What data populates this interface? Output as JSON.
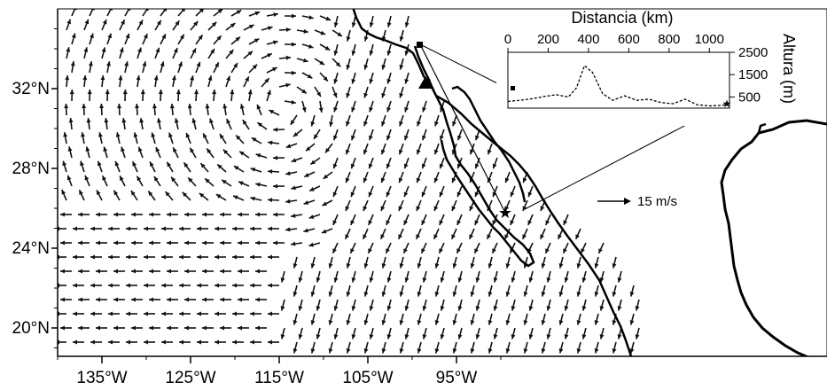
{
  "map": {
    "x_ticks": [
      {
        "lon": -135,
        "label": "135°W"
      },
      {
        "lon": -125,
        "label": "125°W"
      },
      {
        "lon": -115,
        "label": "115°W"
      },
      {
        "lon": -105,
        "label": "105°W"
      },
      {
        "lon": -95,
        "label": "95°W"
      }
    ],
    "y_ticks": [
      {
        "lat": 32,
        "label": "32°N"
      },
      {
        "lat": 28,
        "label": "28°N"
      },
      {
        "lat": 24,
        "label": "24°N"
      },
      {
        "lat": 20,
        "label": "20°N"
      }
    ],
    "legend": {
      "label": "15 m/s",
      "speed_ms": 15
    },
    "colors": {
      "arrow": "#111111",
      "coast": "#000000",
      "background": "#ffffff"
    }
  },
  "inset": {
    "top_axis_title": "Distancia (km)",
    "right_axis_title": "Altura (m)",
    "x_ticks": [
      "0",
      "200",
      "400",
      "600",
      "800",
      "1000"
    ],
    "y_ticks": [
      "2500",
      "1500",
      "500"
    ],
    "chart_data": {
      "type": "line",
      "xlabel": "Distancia (km)",
      "ylabel": "Altura (m)",
      "xlim": [
        0,
        1100
      ],
      "ylim": [
        0,
        2500
      ],
      "x": [
        0,
        60,
        120,
        180,
        240,
        300,
        340,
        380,
        420,
        470,
        520,
        580,
        640,
        700,
        760,
        820,
        880,
        940,
        1000,
        1050,
        1090
      ],
      "y": [
        300,
        350,
        420,
        520,
        600,
        500,
        900,
        1900,
        1600,
        650,
        350,
        550,
        350,
        400,
        250,
        200,
        400,
        150,
        100,
        120,
        150
      ]
    }
  }
}
